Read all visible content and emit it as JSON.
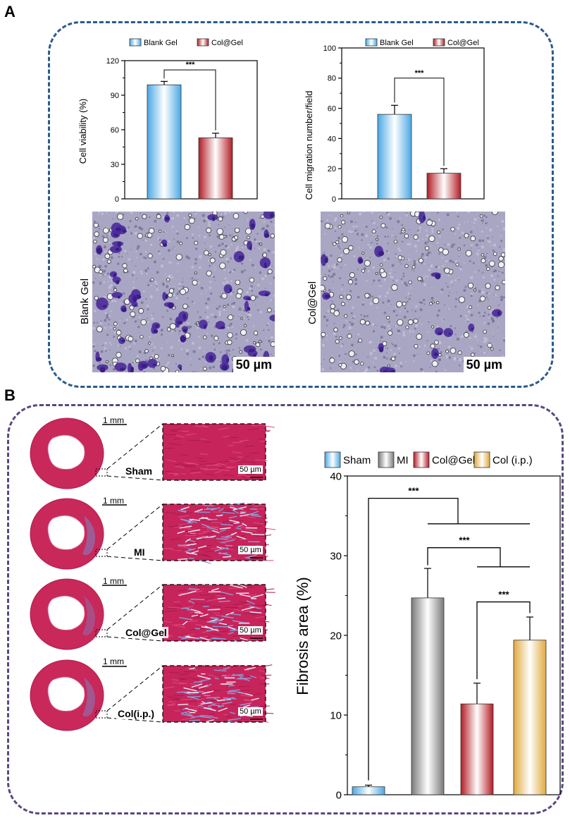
{
  "panels": {
    "a_letter": "A",
    "b_letter": "B"
  },
  "colors": {
    "panel_a_border": "#2b5a8c",
    "panel_b_border": "#5a4780",
    "blank_gel": "#7fc6ee",
    "col_gel": "#b8282f",
    "sham": "#6fb7e3",
    "mi": "#9a9a9a",
    "col_i_p": "#e6b75a",
    "crystal_violet": "#4a2b9a",
    "masson_red": "#c8285a"
  },
  "chart_data": [
    {
      "type": "bar",
      "categories": [
        "Blank Gel",
        "Col@Gel"
      ],
      "values": [
        99,
        53
      ],
      "errors": [
        3,
        4
      ],
      "legend": [
        "Blank Gel",
        "Col@Gel"
      ],
      "ylabel": "Cell viability (%)",
      "xlabel": "",
      "ylim": [
        0,
        120
      ],
      "yticks": [
        "0",
        "30",
        "60",
        "90",
        "120"
      ],
      "significance": [
        {
          "between": [
            "Blank Gel",
            "Col@Gel"
          ],
          "label": "***"
        }
      ],
      "legend_position": "top"
    },
    {
      "type": "bar",
      "categories": [
        "Blank Gel",
        "Col@Gel"
      ],
      "values": [
        56,
        17
      ],
      "errors": [
        6,
        3
      ],
      "legend": [
        "Blank Gel",
        "Col@Gel"
      ],
      "ylabel": "Cell migration number/field",
      "xlabel": "",
      "ylim": [
        0,
        100
      ],
      "yticks": [
        "0",
        "20",
        "40",
        "60",
        "80",
        "100"
      ],
      "significance": [
        {
          "between": [
            "Blank Gel",
            "Col@Gel"
          ],
          "label": "***"
        }
      ],
      "legend_position": "top"
    },
    {
      "type": "bar",
      "categories": [
        "Sham",
        "MI",
        "Col@Gel",
        "Col (i.p.)"
      ],
      "values": [
        1.0,
        24.7,
        11.4,
        19.4
      ],
      "errors": [
        0.2,
        3.7,
        2.6,
        2.9
      ],
      "legend": [
        "Sham",
        "MI",
        "Col@Gel",
        "Col (i.p.)"
      ],
      "ylabel": "Fibrosis area (%)",
      "xlabel": "",
      "ylim": [
        0,
        40
      ],
      "yticks": [
        "0",
        "10",
        "20",
        "30",
        "40"
      ],
      "significance": [
        {
          "between": [
            "Sham",
            "MI, Col@Gel, Col (i.p.)"
          ],
          "label": "***"
        },
        {
          "between": [
            "MI",
            "Col@Gel, Col (i.p.)"
          ],
          "label": "***"
        },
        {
          "between": [
            "Col@Gel",
            "Col (i.p.)"
          ],
          "label": "***"
        }
      ],
      "legend_position": "top"
    }
  ],
  "micrographs": {
    "left_label": "Blank Gel",
    "right_label": "Col@Gel",
    "scale_bar": "50 µm"
  },
  "hearts": {
    "mm_scale": "1 mm",
    "zoom_scale": "50 µm",
    "rows": [
      {
        "label": "Sham"
      },
      {
        "label": "MI"
      },
      {
        "label": "Col@Gel"
      },
      {
        "label": "Col(i.p.)"
      }
    ]
  }
}
